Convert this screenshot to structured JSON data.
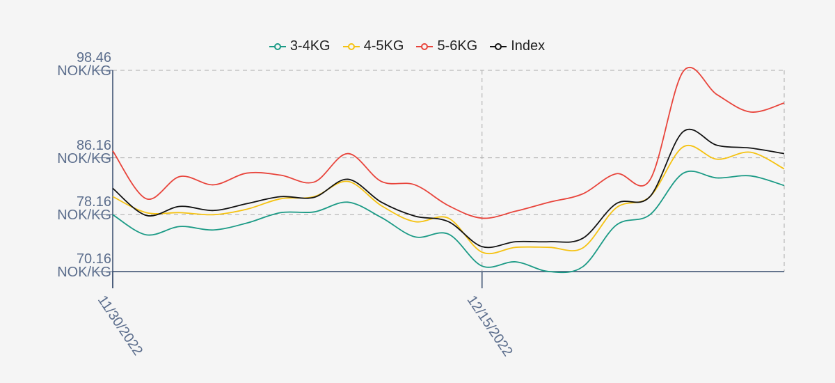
{
  "chart_data": {
    "type": "line",
    "categories": [
      "11/30/2022",
      null,
      null,
      null,
      null,
      null,
      null,
      null,
      null,
      null,
      null,
      "12/15/2022",
      null,
      null,
      null,
      null,
      null,
      null,
      null,
      null,
      null
    ],
    "series": [
      {
        "name": "3-4KG",
        "color": "#1a9a85",
        "values": [
          78.16,
          75.33,
          76.5,
          76.01,
          76.99,
          78.45,
          78.55,
          79.92,
          77.77,
          75.04,
          75.43,
          70.94,
          71.53,
          70.16,
          70.84,
          76.7,
          78.16,
          84.01,
          83.33,
          83.62,
          82.26
        ]
      },
      {
        "name": "4-5KG",
        "color": "#f5c211",
        "values": [
          80.7,
          78.45,
          78.45,
          78.16,
          78.94,
          80.4,
          80.7,
          82.84,
          79.43,
          77.18,
          77.67,
          72.89,
          73.57,
          73.57,
          73.48,
          79.14,
          80.7,
          87.72,
          85.96,
          86.94,
          84.6
        ]
      },
      {
        "name": "5-6KG",
        "color": "#e8433a",
        "values": [
          87.13,
          80.4,
          83.53,
          82.36,
          84.01,
          83.72,
          82.75,
          86.75,
          82.84,
          82.36,
          79.43,
          77.67,
          78.65,
          79.92,
          81.09,
          83.92,
          83.04,
          98.36,
          95.04,
          92.6,
          93.87
        ]
      },
      {
        "name": "Index",
        "color": "#111111",
        "values": [
          81.87,
          78.06,
          79.33,
          78.75,
          79.72,
          80.7,
          80.6,
          83.14,
          79.92,
          77.96,
          77.18,
          73.67,
          74.36,
          74.36,
          74.84,
          79.72,
          80.7,
          89.87,
          87.92,
          87.53,
          86.75
        ]
      }
    ],
    "ylim": [
      70.16,
      98.46
    ],
    "yticks": [
      {
        "value": 70.16,
        "label": "70.16\nNOK/KG"
      },
      {
        "value": 78.16,
        "label": "78.16\nNOK/KG"
      },
      {
        "value": 86.16,
        "label": "86.16\nNOK/KG"
      },
      {
        "value": 98.46,
        "label": "98.46\nNOK/KG"
      }
    ],
    "grid": true,
    "legend": "top"
  }
}
